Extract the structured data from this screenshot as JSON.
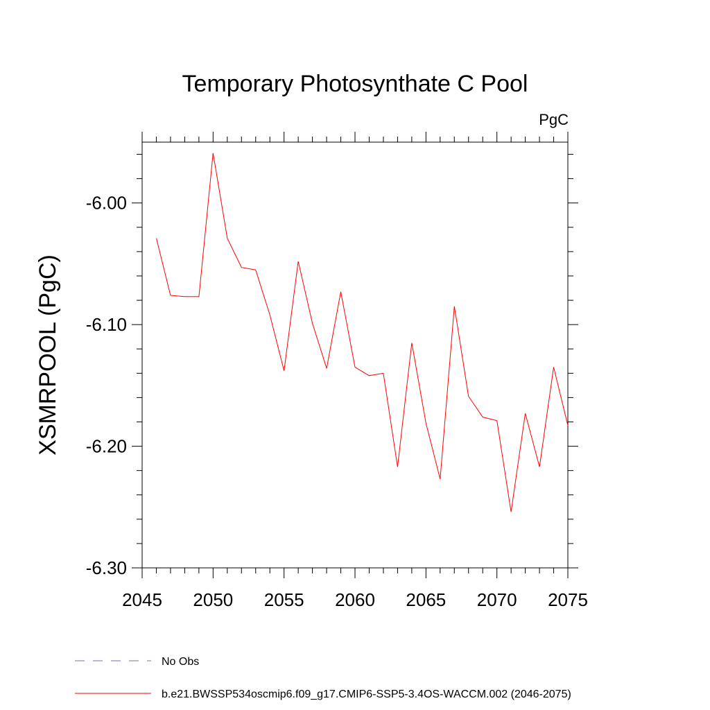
{
  "chart_data": {
    "type": "line",
    "title": "Temporary Photosynthate C Pool",
    "units_label": "PgC",
    "xlabel": "",
    "ylabel": "XSMRPOOL  (PgC)",
    "xlim": [
      2045,
      2075
    ],
    "ylim": [
      -6.3,
      -5.95
    ],
    "x_ticks": [
      2045,
      2050,
      2055,
      2060,
      2065,
      2070,
      2075
    ],
    "x_tick_labels": [
      "2045",
      "2050",
      "2055",
      "2060",
      "2065",
      "2070",
      "2075"
    ],
    "y_ticks": [
      -6.0,
      -6.1,
      -6.2,
      -6.3
    ],
    "y_tick_labels": [
      "-6.00",
      "-6.10",
      "-6.20",
      "-6.30"
    ],
    "grid": false,
    "series": [
      {
        "name": "b.e21.BWSSP534oscmip6.f09_g17.CMIP6-SSP5-3.4OS-WACCM.002 (2046-2075)",
        "color": "#ff0000",
        "x": [
          2046,
          2047,
          2048,
          2049,
          2050,
          2051,
          2052,
          2053,
          2054,
          2055,
          2056,
          2057,
          2058,
          2059,
          2060,
          2061,
          2062,
          2063,
          2064,
          2065,
          2066,
          2067,
          2068,
          2069,
          2070,
          2071,
          2072,
          2073,
          2074,
          2075
        ],
        "values": [
          -6.029,
          -6.076,
          -6.077,
          -6.077,
          -5.959,
          -6.029,
          -6.053,
          -6.055,
          -6.092,
          -6.138,
          -6.048,
          -6.099,
          -6.136,
          -6.073,
          -6.135,
          -6.142,
          -6.14,
          -6.217,
          -6.115,
          -6.181,
          -6.227,
          -6.085,
          -6.159,
          -6.176,
          -6.179,
          -6.254,
          -6.173,
          -6.217,
          -6.135,
          -6.183
        ]
      }
    ],
    "legend": {
      "placement": "bottom-left",
      "entries": [
        {
          "label": "No Obs",
          "color": "#7b68c8",
          "style": "dashed"
        },
        {
          "label": "b.e21.BWSSP534oscmip6.f09_g17.CMIP6-SSP5-3.4OS-WACCM.002 (2046-2075)",
          "color": "#ff0000",
          "style": "solid"
        }
      ]
    }
  }
}
